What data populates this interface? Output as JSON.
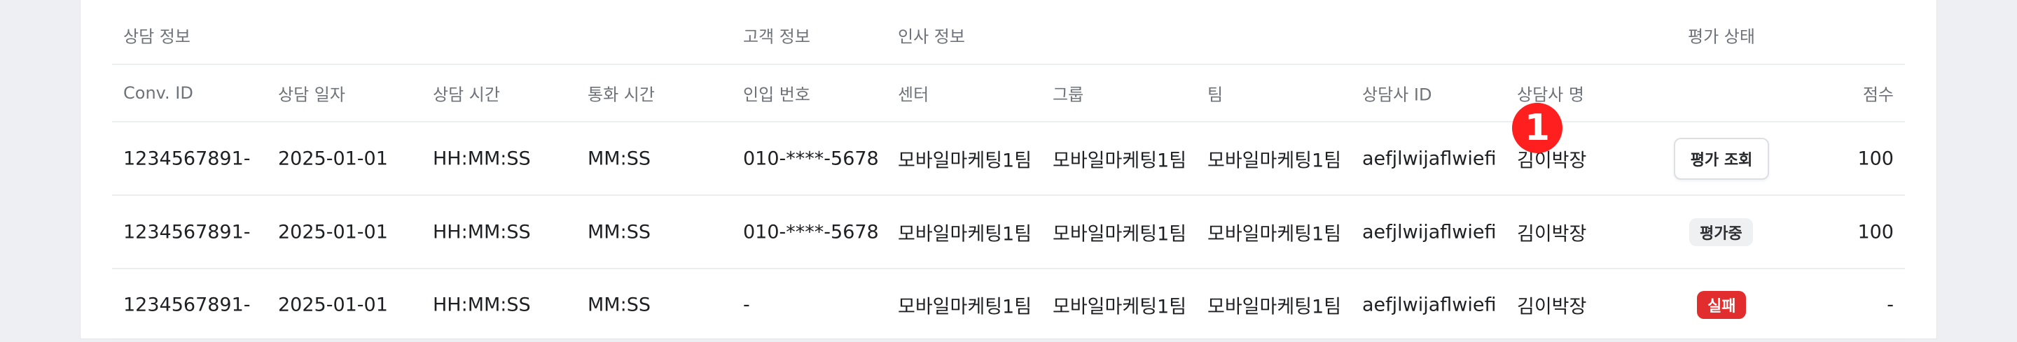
{
  "groups": {
    "consult": "상담 정보",
    "customer": "고객 정보",
    "hr": "인사 정보",
    "status": "평가 상태"
  },
  "columns": [
    "Conv. ID",
    "상담 일자",
    "상담 시간",
    "통화 시간",
    "인입 번호",
    "센터",
    "그룹",
    "팀",
    "상담사 ID",
    "상담사 명",
    "",
    "점수"
  ],
  "rows": [
    {
      "conv_id": "1234567891-",
      "date": "2025-01-01",
      "time": "HH:MM:SS",
      "duration": "MM:SS",
      "phone": "010-****-5678",
      "center": "모바일마케팅1팀",
      "group": "모바일마케팅1팀",
      "team": "모바일마케팅1팀",
      "agent_id": "aefjlwijaflwiefi",
      "agent_name": "김이박장",
      "status": "평가 조회",
      "score": "100"
    },
    {
      "conv_id": "1234567891-",
      "date": "2025-01-01",
      "time": "HH:MM:SS",
      "duration": "MM:SS",
      "phone": "010-****-5678",
      "center": "모바일마케팅1팀",
      "group": "모바일마케팅1팀",
      "team": "모바일마케팅1팀",
      "agent_id": "aefjlwijaflwiefi",
      "agent_name": "김이박장",
      "status": "평가중",
      "score": "100"
    },
    {
      "conv_id": "1234567891-",
      "date": "2025-01-01",
      "time": "HH:MM:SS",
      "duration": "MM:SS",
      "phone": "-",
      "center": "모바일마케팅1팀",
      "group": "모바일마케팅1팀",
      "team": "모바일마케팅1팀",
      "agent_id": "aefjlwijaflwiefi",
      "agent_name": "김이박장",
      "status": "실패",
      "score": "-"
    }
  ],
  "marker": "1",
  "colors": {
    "fail": "#e12d2d",
    "marker": "#ff1f1f",
    "progress_bg": "#eff0f2"
  }
}
